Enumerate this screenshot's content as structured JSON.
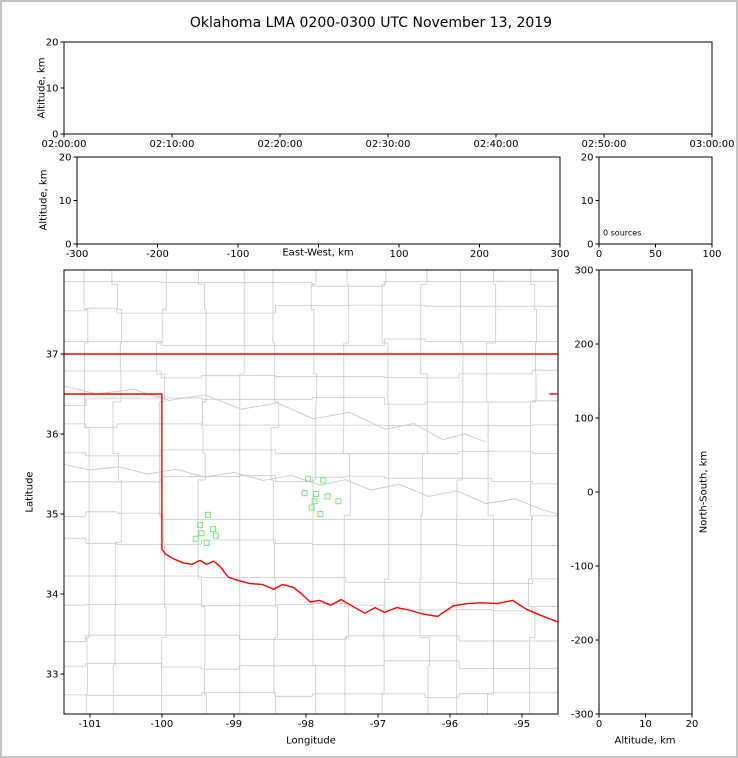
{
  "title": "Oklahoma LMA 0200-0300 UTC November 13, 2019",
  "colors": {
    "frame": "#000000",
    "state_boundary": "#ff0000",
    "county_lines": "#c9c9c9",
    "source_marker": "#7be382",
    "page_border": "#c3c3c3",
    "text": "#000000"
  },
  "chart_data": [
    {
      "id": "time_height",
      "type": "scatter",
      "xlabel": "",
      "ylabel": "Altitude, km",
      "xlim": [
        0,
        3600
      ],
      "xticks": [
        0,
        600,
        1200,
        1800,
        2400,
        3000,
        3600
      ],
      "xtick_labels": [
        "02:00:00",
        "02:10:00",
        "02:20:00",
        "02:30:00",
        "02:40:00",
        "02:50:00",
        "03:00:00"
      ],
      "ylim": [
        0,
        20
      ],
      "yticks": [
        0,
        10,
        20
      ],
      "grid": false,
      "points": []
    },
    {
      "id": "ew_altitude",
      "type": "scatter",
      "xlabel": "East-West, km",
      "ylabel": "Altitude, km",
      "xlim": [
        -300,
        300
      ],
      "xticks": [
        -300,
        -200,
        -100,
        0,
        100,
        200,
        300
      ],
      "hide_zero_xtick_label": true,
      "ylim": [
        0,
        20
      ],
      "yticks": [
        0,
        10,
        20
      ],
      "grid": false,
      "points": []
    },
    {
      "id": "source_histogram",
      "type": "histogram",
      "annotation": "0 sources",
      "xlim": [
        0,
        100
      ],
      "xticks": [
        0,
        50,
        100
      ],
      "ylim": [
        0,
        20
      ],
      "yticks": [
        0,
        10,
        20
      ],
      "grid": false,
      "points": []
    },
    {
      "id": "plan_view",
      "type": "scatter",
      "xlabel": "Longitude",
      "ylabel": "Latitude",
      "xlim": [
        -101.36,
        -94.5
      ],
      "xticks": [
        -101,
        -100,
        -99,
        -98,
        -97,
        -96,
        -95
      ],
      "ylim": [
        32.5,
        38.05
      ],
      "yticks": [
        33,
        34,
        35,
        36,
        37
      ],
      "grid": false,
      "points": [
        [
          -97.97,
          35.44
        ],
        [
          -97.76,
          35.42
        ],
        [
          -98.02,
          35.26
        ],
        [
          -97.86,
          35.25
        ],
        [
          -97.7,
          35.22
        ],
        [
          -97.55,
          35.16
        ],
        [
          -97.92,
          35.08
        ],
        [
          -97.8,
          35.0
        ],
        [
          -97.88,
          35.16
        ],
        [
          -99.36,
          34.99
        ],
        [
          -99.47,
          34.86
        ],
        [
          -99.29,
          34.81
        ],
        [
          -99.53,
          34.69
        ],
        [
          -99.38,
          34.64
        ],
        [
          -99.25,
          34.73
        ],
        [
          -99.45,
          34.76
        ]
      ],
      "map": {
        "state_boundaries": [
          [
            [
              -101.36,
              37
            ],
            [
              -94.5,
              37
            ]
          ],
          [
            [
              -101.36,
              36.5
            ],
            [
              -100,
              36.5
            ],
            [
              -100,
              34.56
            ],
            [
              -99.95,
              34.5
            ],
            [
              -99.84,
              34.44
            ],
            [
              -99.71,
              34.39
            ],
            [
              -99.58,
              34.37
            ],
            [
              -99.47,
              34.42
            ],
            [
              -99.38,
              34.37
            ],
            [
              -99.28,
              34.41
            ],
            [
              -99.19,
              34.34
            ],
            [
              -99.08,
              34.21
            ],
            [
              -98.94,
              34.17
            ],
            [
              -98.78,
              34.13
            ],
            [
              -98.61,
              34.12
            ],
            [
              -98.45,
              34.06
            ],
            [
              -98.32,
              34.12
            ],
            [
              -98.17,
              34.08
            ],
            [
              -98.07,
              34.01
            ],
            [
              -97.94,
              33.9
            ],
            [
              -97.81,
              33.92
            ],
            [
              -97.66,
              33.86
            ],
            [
              -97.51,
              33.93
            ],
            [
              -97.34,
              33.84
            ],
            [
              -97.18,
              33.76
            ],
            [
              -97.04,
              33.83
            ],
            [
              -96.91,
              33.77
            ],
            [
              -96.74,
              33.83
            ],
            [
              -96.57,
              33.8
            ],
            [
              -96.38,
              33.75
            ],
            [
              -96.17,
              33.72
            ],
            [
              -95.96,
              33.85
            ],
            [
              -95.76,
              33.88
            ],
            [
              -95.56,
              33.89
            ],
            [
              -95.34,
              33.88
            ],
            [
              -95.13,
              33.92
            ],
            [
              -94.94,
              33.81
            ],
            [
              -94.76,
              33.74
            ],
            [
              -94.5,
              33.65
            ]
          ],
          [
            [
              -94.62,
              36.5
            ],
            [
              -94.5,
              36.5
            ]
          ]
        ],
        "rivers": [
          [
            [
              -101.36,
              35.62
            ],
            [
              -101.0,
              35.55
            ],
            [
              -100.6,
              35.59
            ],
            [
              -100.2,
              35.5
            ],
            [
              -99.8,
              35.56
            ],
            [
              -99.4,
              35.46
            ],
            [
              -99.0,
              35.52
            ],
            [
              -98.6,
              35.42
            ],
            [
              -98.2,
              35.48
            ],
            [
              -97.8,
              35.36
            ],
            [
              -97.45,
              35.43
            ],
            [
              -97.1,
              35.3
            ],
            [
              -96.7,
              35.37
            ],
            [
              -96.3,
              35.22
            ],
            [
              -95.9,
              35.29
            ],
            [
              -95.5,
              35.13
            ],
            [
              -95.1,
              35.19
            ],
            [
              -94.7,
              35.05
            ],
            [
              -94.5,
              35.0
            ]
          ],
          [
            [
              -101.36,
              36.6
            ],
            [
              -100.9,
              36.5
            ],
            [
              -100.4,
              36.56
            ],
            [
              -99.9,
              36.42
            ],
            [
              -99.4,
              36.49
            ],
            [
              -98.9,
              36.31
            ],
            [
              -98.4,
              36.39
            ],
            [
              -97.9,
              36.19
            ],
            [
              -97.4,
              36.27
            ],
            [
              -96.9,
              36.06
            ],
            [
              -96.5,
              36.13
            ],
            [
              -96.1,
              35.93
            ],
            [
              -95.8,
              36.0
            ],
            [
              -95.5,
              35.9
            ]
          ]
        ],
        "county_grid": {
          "seed": 7,
          "col_step_min": 0.42,
          "col_step_max": 0.62,
          "row_step_min": 0.3,
          "row_step_max": 0.46,
          "jitter": 0.07
        }
      }
    },
    {
      "id": "ns_altitude",
      "type": "scatter",
      "xlabel": "Altitude, km",
      "ylabel_right": "North-South, km",
      "xlim": [
        0,
        20
      ],
      "xticks": [
        0,
        10,
        20
      ],
      "ylim": [
        -300,
        300
      ],
      "yticks": [
        -300,
        -200,
        -100,
        0,
        100,
        200,
        300
      ],
      "grid": false,
      "points": []
    }
  ]
}
